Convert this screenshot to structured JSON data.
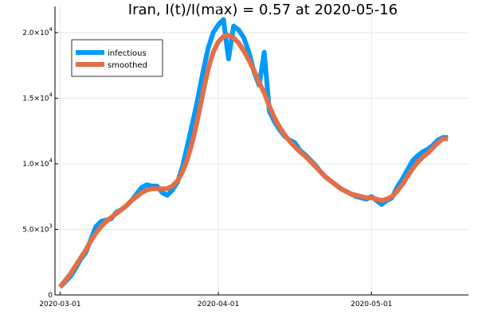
{
  "chart_data": {
    "type": "line",
    "title": "Iran,  I(t)/I(max) = 0.57 at 2020-05-16",
    "xlabel": "",
    "ylabel": "",
    "x_tick_labels": [
      "2020-03-01",
      "2020-04-01",
      "2020-05-01"
    ],
    "x_tick_day_index": [
      0,
      31,
      61
    ],
    "y_ticks": [
      0,
      5000,
      10000,
      15000,
      20000
    ],
    "y_tick_labels": [
      {
        "mantissa": "0",
        "exponent": ""
      },
      {
        "mantissa": "5.0×10",
        "exponent": "3"
      },
      {
        "mantissa": "1.0×10",
        "exponent": "4"
      },
      {
        "mantissa": "1.5×10",
        "exponent": "4"
      },
      {
        "mantissa": "2.0×10",
        "exponent": "4"
      }
    ],
    "xlim": [
      -1,
      80
    ],
    "ylim": [
      0,
      22000
    ],
    "grid": true,
    "legend_position": "top-left",
    "x": [
      "2020-03-01",
      "2020-03-02",
      "2020-03-03",
      "2020-03-04",
      "2020-03-05",
      "2020-03-06",
      "2020-03-07",
      "2020-03-08",
      "2020-03-09",
      "2020-03-10",
      "2020-03-11",
      "2020-03-12",
      "2020-03-13",
      "2020-03-14",
      "2020-03-15",
      "2020-03-16",
      "2020-03-17",
      "2020-03-18",
      "2020-03-19",
      "2020-03-20",
      "2020-03-21",
      "2020-03-22",
      "2020-03-23",
      "2020-03-24",
      "2020-03-25",
      "2020-03-26",
      "2020-03-27",
      "2020-03-28",
      "2020-03-29",
      "2020-03-30",
      "2020-03-31",
      "2020-04-01",
      "2020-04-02",
      "2020-04-03",
      "2020-04-04",
      "2020-04-05",
      "2020-04-06",
      "2020-04-07",
      "2020-04-08",
      "2020-04-09",
      "2020-04-10",
      "2020-04-11",
      "2020-04-12",
      "2020-04-13",
      "2020-04-14",
      "2020-04-15",
      "2020-04-16",
      "2020-04-17",
      "2020-04-18",
      "2020-04-19",
      "2020-04-20",
      "2020-04-21",
      "2020-04-22",
      "2020-04-23",
      "2020-04-24",
      "2020-04-25",
      "2020-04-26",
      "2020-04-27",
      "2020-04-28",
      "2020-04-29",
      "2020-04-30",
      "2020-05-01",
      "2020-05-02",
      "2020-05-03",
      "2020-05-04",
      "2020-05-05",
      "2020-05-06",
      "2020-05-07",
      "2020-05-08",
      "2020-05-09",
      "2020-05-10",
      "2020-05-11",
      "2020-05-12",
      "2020-05-13",
      "2020-05-14",
      "2020-05-15",
      "2020-05-16"
    ],
    "series": [
      {
        "name": "infectious",
        "color": "#009af9",
        "values": [
          600,
          1000,
          1400,
          2000,
          2700,
          3200,
          4200,
          5200,
          5600,
          5700,
          5800,
          6300,
          6500,
          6800,
          7200,
          7700,
          8200,
          8400,
          8300,
          8300,
          7800,
          7600,
          8000,
          8600,
          9800,
          11500,
          13200,
          15000,
          17000,
          18800,
          20000,
          20600,
          21000,
          18000,
          20500,
          20200,
          19600,
          18500,
          17000,
          16000,
          18500,
          14000,
          13200,
          12600,
          12100,
          11800,
          11600,
          11000,
          10700,
          10300,
          9900,
          9400,
          9000,
          8700,
          8400,
          8100,
          7900,
          7700,
          7500,
          7400,
          7300,
          7500,
          7200,
          6900,
          7200,
          7400,
          8200,
          8800,
          9500,
          10200,
          10600,
          10900,
          11100,
          11400,
          11800,
          12000,
          12000
        ],
        "display_line_width": "wide"
      },
      {
        "name": "smoothed",
        "color": "#e26f46",
        "values": [
          600,
          1100,
          1600,
          2200,
          2800,
          3400,
          4100,
          4700,
          5200,
          5600,
          5900,
          6200,
          6500,
          6800,
          7200,
          7500,
          7800,
          8000,
          8100,
          8100,
          8100,
          8100,
          8300,
          8700,
          9400,
          10400,
          11800,
          13500,
          15400,
          17200,
          18500,
          19300,
          19700,
          19800,
          19600,
          19200,
          18600,
          17900,
          17100,
          16200,
          15400,
          14400,
          13500,
          12800,
          12200,
          11700,
          11300,
          10900,
          10600,
          10200,
          9800,
          9400,
          9000,
          8700,
          8400,
          8100,
          7900,
          7700,
          7600,
          7500,
          7400,
          7400,
          7300,
          7200,
          7300,
          7500,
          7900,
          8400,
          9000,
          9600,
          10100,
          10500,
          10800,
          11200,
          11600,
          11900,
          11900
        ],
        "display_line_width": "wide"
      }
    ]
  }
}
